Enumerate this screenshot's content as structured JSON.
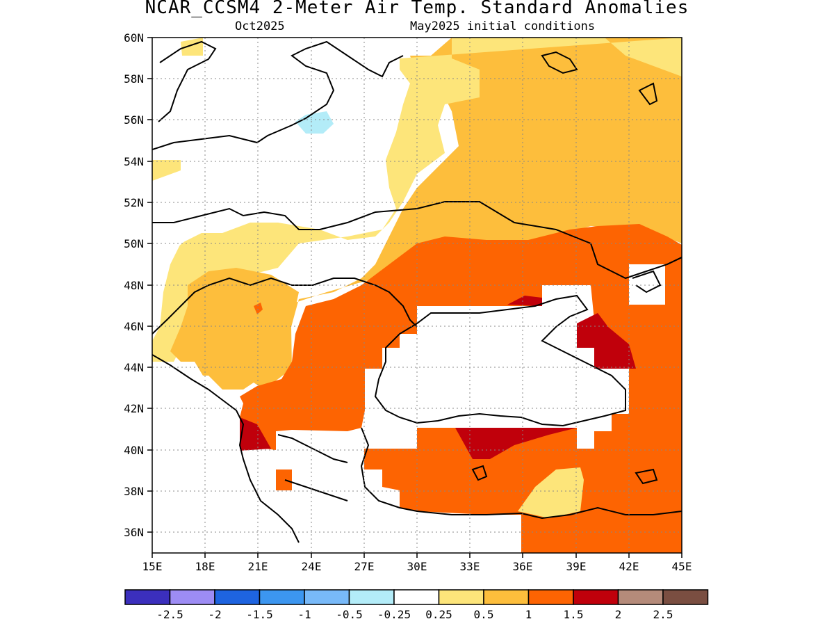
{
  "header": {
    "title": "NCAR_CCSM4 2-Meter Air Temp. Standard Anomalies",
    "valid_label": "Oct2025",
    "init_label": "May2025 initial conditions"
  },
  "map": {
    "lon_range": [
      15,
      45
    ],
    "lat_range": [
      35,
      60
    ],
    "lat_ticks": [
      "60N",
      "58N",
      "56N",
      "54N",
      "52N",
      "50N",
      "48N",
      "46N",
      "44N",
      "42N",
      "40N",
      "38N",
      "36N"
    ],
    "lon_ticks": [
      "15E",
      "18E",
      "21E",
      "24E",
      "27E",
      "30E",
      "33E",
      "36E",
      "39E",
      "42E",
      "45E"
    ],
    "grid": "dotted"
  },
  "legend": {
    "colors": [
      "#3b2fbd",
      "#9d8cf4",
      "#1e64e0",
      "#3c96f0",
      "#78b9f8",
      "#b3ecf8",
      "#ffffff",
      "#fde57a",
      "#fdbe3c",
      "#fd6402",
      "#c0000b",
      "#b58b7a",
      "#7a4e41"
    ],
    "labels": [
      "-2.5",
      "-2",
      "-1.5",
      "-1",
      "-0.5",
      "-0.25",
      "0.25",
      "0.5",
      "1",
      "1.5",
      "2",
      "2.5"
    ]
  }
}
